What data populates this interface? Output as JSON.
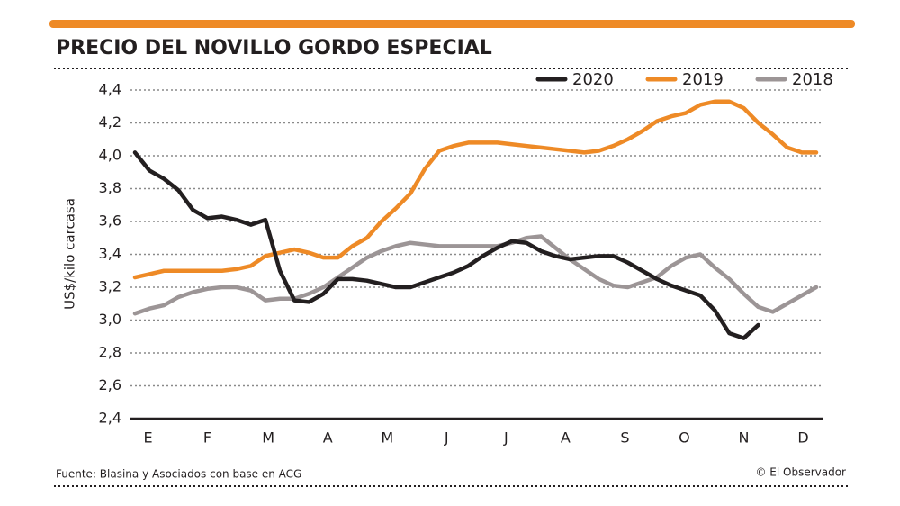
{
  "chart_data": {
    "type": "line",
    "title": "PRECIO DEL NOVILLO GORDO ESPECIAL",
    "y_label": "US$/kilo carcasa",
    "source": "Fuente: Blasina y Asociados con base en ACG",
    "credit": "© El Observador",
    "x": [
      0,
      1,
      2,
      3,
      4,
      5,
      6,
      7,
      8,
      9,
      10,
      11,
      12,
      13,
      14,
      15,
      16,
      17,
      18,
      19,
      20,
      21,
      22,
      23,
      24,
      25,
      26,
      27,
      28,
      29,
      30,
      31,
      32,
      33,
      34,
      35,
      36,
      37,
      38,
      39,
      40,
      41,
      42,
      43,
      44,
      45,
      46,
      47
    ],
    "xlim": [
      0,
      47
    ],
    "xticks": [
      {
        "value": 0.9,
        "label": "E"
      },
      {
        "value": 5.0,
        "label": "F"
      },
      {
        "value": 9.2,
        "label": "M"
      },
      {
        "value": 13.3,
        "label": "A"
      },
      {
        "value": 17.4,
        "label": "M"
      },
      {
        "value": 21.5,
        "label": "J"
      },
      {
        "value": 25.6,
        "label": "J"
      },
      {
        "value": 29.7,
        "label": "A"
      },
      {
        "value": 33.8,
        "label": "S"
      },
      {
        "value": 37.9,
        "label": "O"
      },
      {
        "value": 42.0,
        "label": "N"
      },
      {
        "value": 46.1,
        "label": "D"
      }
    ],
    "ylim": [
      2.4,
      4.4
    ],
    "yticks": [
      {
        "value": 2.4,
        "label": "2,4"
      },
      {
        "value": 2.6,
        "label": "2,6"
      },
      {
        "value": 2.8,
        "label": "2,8"
      },
      {
        "value": 3.0,
        "label": "3,0"
      },
      {
        "value": 3.2,
        "label": "3,2"
      },
      {
        "value": 3.4,
        "label": "3,4"
      },
      {
        "value": 3.6,
        "label": "3,6"
      },
      {
        "value": 3.8,
        "label": "3,8"
      },
      {
        "value": 4.0,
        "label": "4,0"
      },
      {
        "value": 4.2,
        "label": "4,2"
      },
      {
        "value": 4.4,
        "label": "4,4"
      }
    ],
    "grid": true,
    "legend": "top-right",
    "series": [
      {
        "name": "2020",
        "color": "#231f20",
        "values": [
          4.02,
          3.91,
          3.86,
          3.79,
          3.67,
          3.62,
          3.63,
          3.61,
          3.58,
          3.61,
          3.3,
          3.12,
          3.11,
          3.16,
          3.25,
          3.25,
          3.24,
          3.22,
          3.2,
          3.2,
          3.23,
          3.26,
          3.29,
          3.33,
          3.39,
          3.44,
          3.48,
          3.47,
          3.42,
          3.39,
          3.37,
          3.38,
          3.39,
          3.39,
          3.35,
          3.3,
          3.25,
          3.21,
          3.18,
          3.15,
          3.06,
          2.92,
          2.89,
          2.97,
          null,
          null,
          null,
          null
        ]
      },
      {
        "name": "2019",
        "color": "#ee8a26",
        "values": [
          3.26,
          3.28,
          3.3,
          3.3,
          3.3,
          3.3,
          3.3,
          3.31,
          3.33,
          3.39,
          3.41,
          3.43,
          3.41,
          3.38,
          3.38,
          3.45,
          3.5,
          3.6,
          3.68,
          3.77,
          3.92,
          4.03,
          4.06,
          4.08,
          4.08,
          4.08,
          4.07,
          4.06,
          4.05,
          4.04,
          4.03,
          4.02,
          4.03,
          4.06,
          4.1,
          4.15,
          4.21,
          4.24,
          4.26,
          4.31,
          4.33,
          4.33,
          4.29,
          4.2,
          4.13,
          4.05,
          4.02,
          4.02
        ]
      },
      {
        "name": "2018",
        "color": "#9c9596",
        "values": [
          3.04,
          3.07,
          3.09,
          3.14,
          3.17,
          3.19,
          3.2,
          3.2,
          3.18,
          3.12,
          3.13,
          3.13,
          3.16,
          3.2,
          3.26,
          3.32,
          3.38,
          3.42,
          3.45,
          3.47,
          3.46,
          3.45,
          3.45,
          3.45,
          3.45,
          3.45,
          3.47,
          3.5,
          3.51,
          3.44,
          3.37,
          3.31,
          3.25,
          3.21,
          3.2,
          3.23,
          3.26,
          3.33,
          3.38,
          3.4,
          3.32,
          3.25,
          3.16,
          3.08,
          3.05,
          3.1,
          3.15,
          3.2
        ]
      }
    ]
  }
}
